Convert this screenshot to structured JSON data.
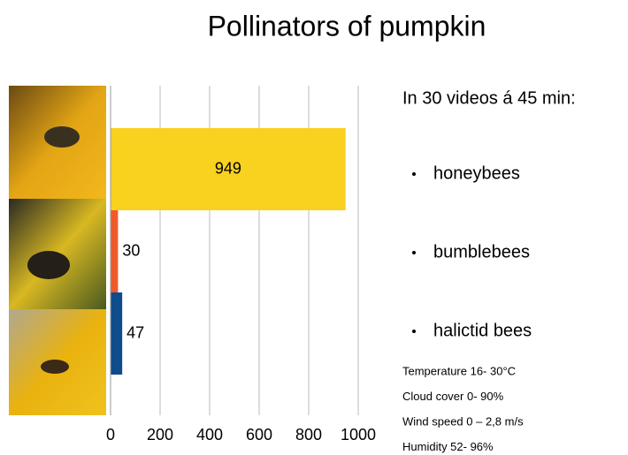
{
  "chart_data": {
    "type": "bar",
    "orientation": "horizontal",
    "title": "Pollinators of pumpkin",
    "values": [
      949,
      30,
      47
    ],
    "colors": [
      "#f9d11f",
      "#ef5a28",
      "#0e4c8c"
    ],
    "xlim": [
      0,
      1000
    ],
    "xticks": [
      0,
      200,
      400,
      600,
      800,
      1000
    ],
    "grid": true
  },
  "side_text": {
    "heading": "In 30 videos á 45 min:",
    "items": [
      "honeybees",
      "bumblebees",
      "halictid bees"
    ],
    "conditions": [
      "Temperature 16- 30°C",
      "Cloud cover 0- 90%",
      "Wind speed 0 – 2,8 m/s",
      "Humidity 52- 96%"
    ]
  }
}
